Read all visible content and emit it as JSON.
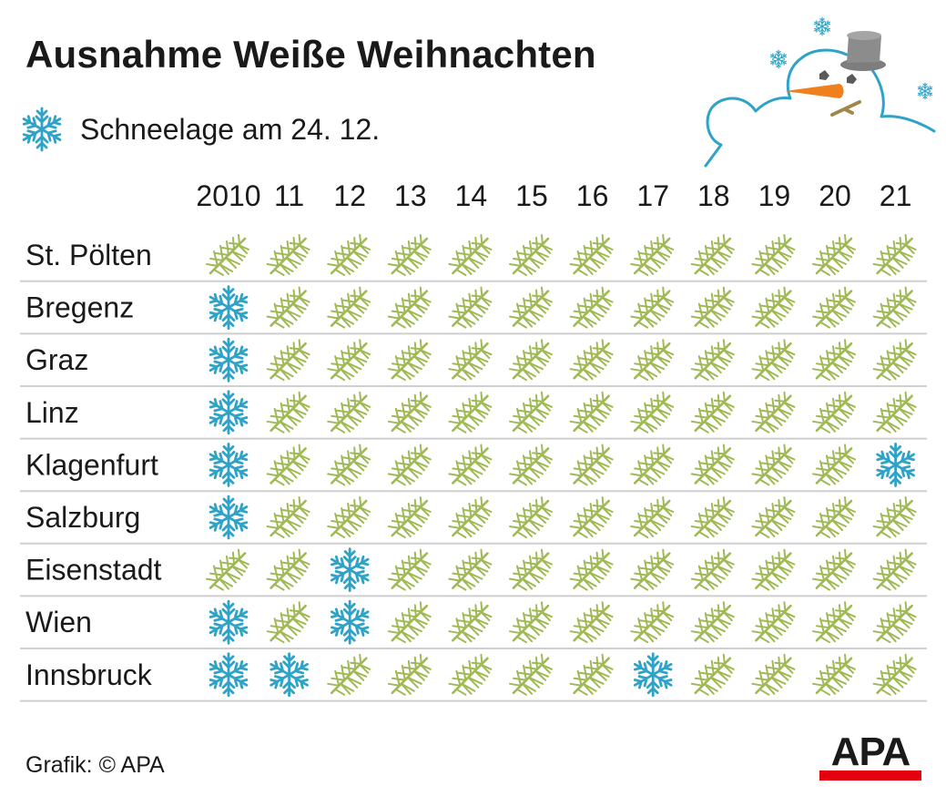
{
  "title": "Ausnahme Weiße Weihnachten",
  "legend": {
    "label": "Schneelage am 24. 12.",
    "icon": "snowflake-icon"
  },
  "credit": "Grafik: © APA",
  "logo": "APA",
  "colors": {
    "snow": "#2fa3c7",
    "branch": "#9fb954",
    "divider": "#cfcfcf",
    "logo_bar": "#e3000f"
  },
  "icons": {
    "snow": "snowflake-icon",
    "no_snow": "fir-branch-icon"
  },
  "chart_data": {
    "type": "table",
    "title": "Ausnahme Weiße Weihnachten",
    "legend": "Schneelage am 24. 12.",
    "columns": [
      "2010",
      "11",
      "12",
      "13",
      "14",
      "15",
      "16",
      "17",
      "18",
      "19",
      "20",
      "21"
    ],
    "rows": [
      {
        "city": "St. Pölten",
        "snow": [
          0,
          0,
          0,
          0,
          0,
          0,
          0,
          0,
          0,
          0,
          0,
          0
        ]
      },
      {
        "city": "Bregenz",
        "snow": [
          1,
          0,
          0,
          0,
          0,
          0,
          0,
          0,
          0,
          0,
          0,
          0
        ]
      },
      {
        "city": "Graz",
        "snow": [
          1,
          0,
          0,
          0,
          0,
          0,
          0,
          0,
          0,
          0,
          0,
          0
        ]
      },
      {
        "city": "Linz",
        "snow": [
          1,
          0,
          0,
          0,
          0,
          0,
          0,
          0,
          0,
          0,
          0,
          0
        ]
      },
      {
        "city": "Klagenfurt",
        "snow": [
          1,
          0,
          0,
          0,
          0,
          0,
          0,
          0,
          0,
          0,
          0,
          1
        ]
      },
      {
        "city": "Salzburg",
        "snow": [
          1,
          0,
          0,
          0,
          0,
          0,
          0,
          0,
          0,
          0,
          0,
          0
        ]
      },
      {
        "city": "Eisenstadt",
        "snow": [
          0,
          0,
          1,
          0,
          0,
          0,
          0,
          0,
          0,
          0,
          0,
          0
        ]
      },
      {
        "city": "Wien",
        "snow": [
          1,
          0,
          1,
          0,
          0,
          0,
          0,
          0,
          0,
          0,
          0,
          0
        ]
      },
      {
        "city": "Innsbruck",
        "snow": [
          1,
          1,
          0,
          0,
          0,
          0,
          0,
          1,
          0,
          0,
          0,
          0
        ]
      }
    ]
  }
}
